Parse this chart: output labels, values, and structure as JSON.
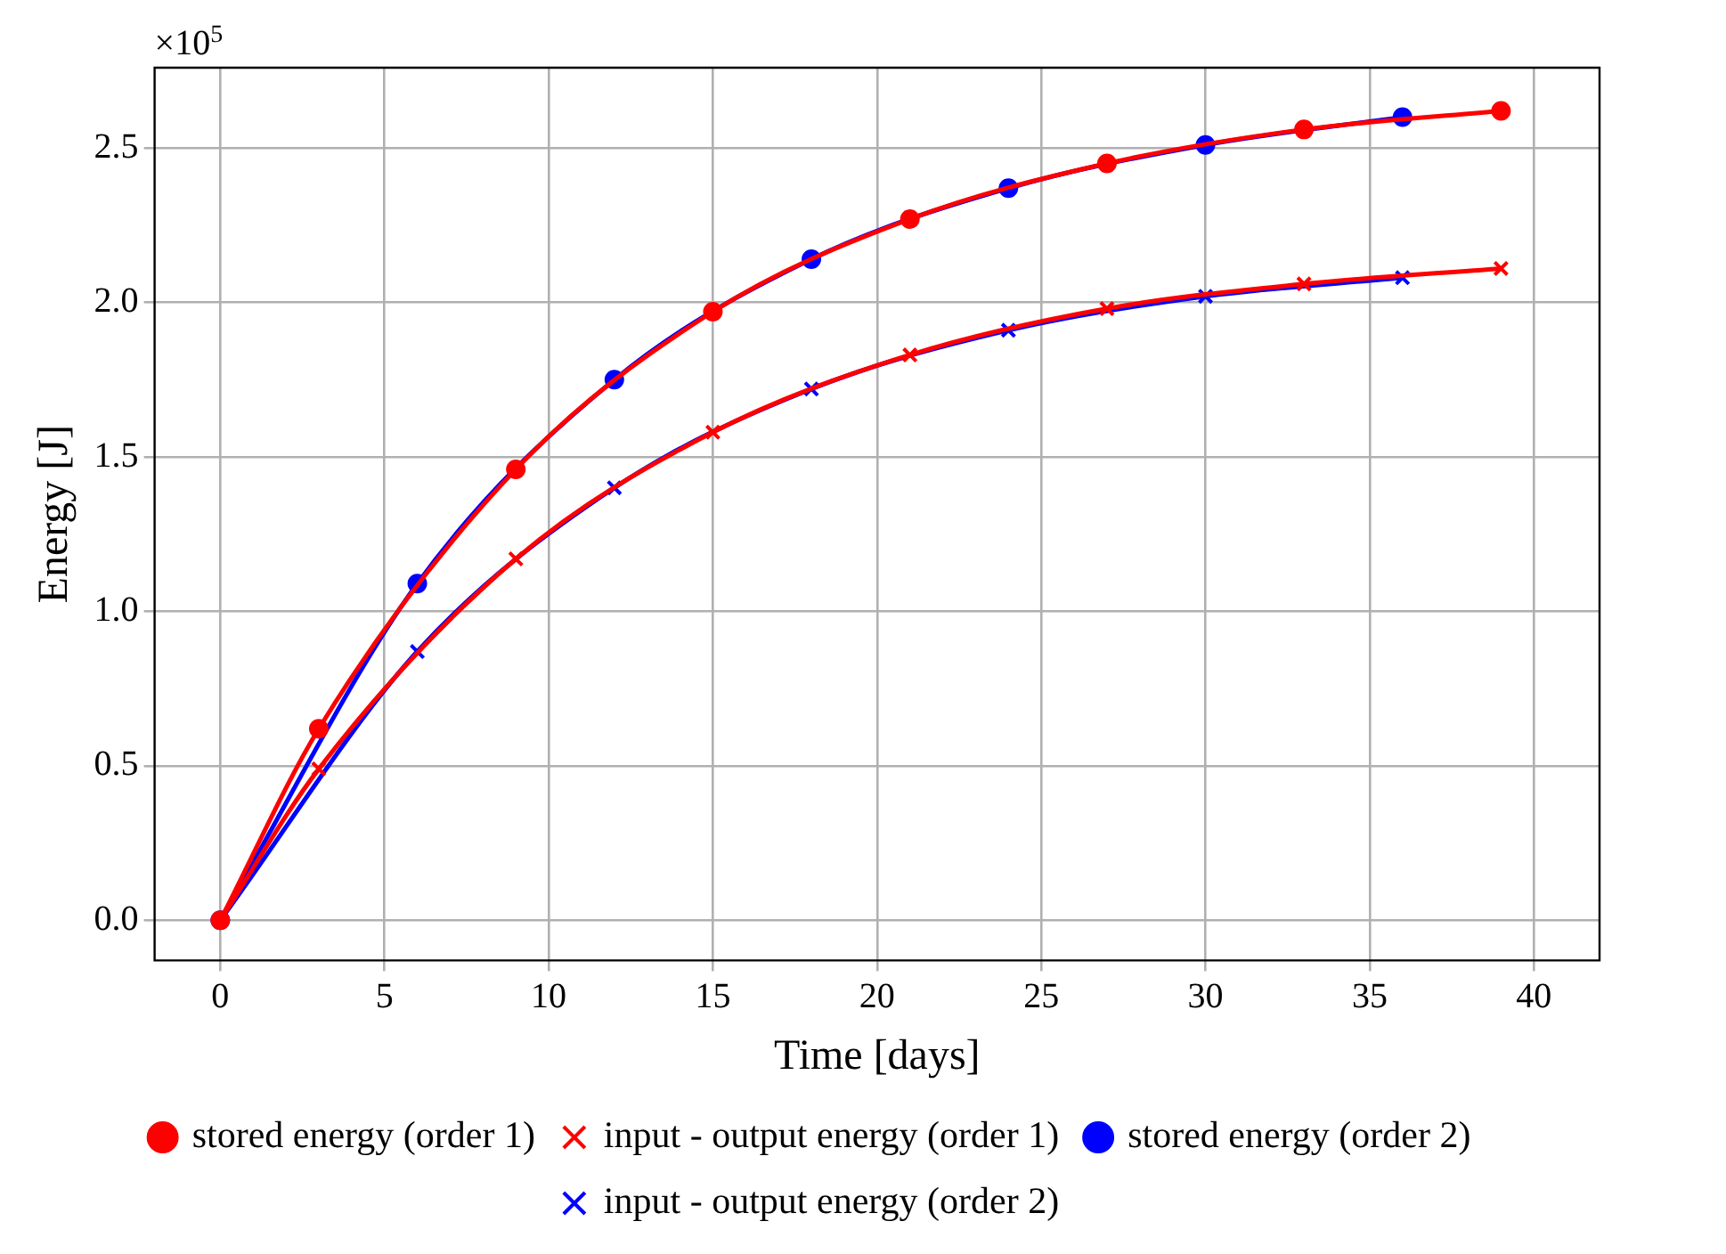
{
  "chart_data": {
    "type": "line",
    "xlabel": "Time [days]",
    "ylabel": "Energy [J]",
    "annotations": [
      "×10$^{5}$"
    ],
    "xlim": [
      -2,
      42
    ],
    "xticks": [
      0,
      5,
      10,
      15,
      20,
      25,
      30,
      35,
      40
    ],
    "ylim": [
      -0.13,
      2.76
    ],
    "yticks": [
      {
        "value": 0,
        "label": "0.0"
      },
      0.5,
      {
        "value": 1,
        "label": "1.0"
      },
      1.5,
      {
        "value": 2,
        "label": "2.0"
      },
      2.5
    ],
    "grid": true,
    "legend": "bottom",
    "line_style": "solid",
    "series": [
      {
        "name": "stored energy (order 1)",
        "color": "#ff0000",
        "marker": "circle",
        "x": [
          0,
          3,
          9,
          15,
          21,
          27,
          33,
          39
        ],
        "values": [
          0,
          0.62,
          1.46,
          1.97,
          2.27,
          2.45,
          2.56,
          2.62
        ]
      },
      {
        "name": "input - output energy (order 1)",
        "color": "#ff0000",
        "marker": "cross",
        "x": [
          0,
          3,
          9,
          15,
          21,
          27,
          33,
          39
        ],
        "values": [
          0,
          0.49,
          1.17,
          1.58,
          1.83,
          1.98,
          2.06,
          2.11
        ]
      },
      {
        "name": "stored energy (order 2)",
        "color": "#0000ff",
        "marker": "circle",
        "x": [
          0,
          6,
          12,
          18,
          24,
          30,
          36
        ],
        "values": [
          0,
          1.09,
          1.75,
          2.14,
          2.37,
          2.51,
          2.6
        ]
      },
      {
        "name": "input - output energy (order 2)",
        "color": "#0000ff",
        "marker": "cross",
        "x": [
          0,
          6,
          12,
          18,
          24,
          30,
          36
        ],
        "values": [
          0,
          0.87,
          1.4,
          1.72,
          1.91,
          2.02,
          2.08
        ]
      }
    ]
  }
}
